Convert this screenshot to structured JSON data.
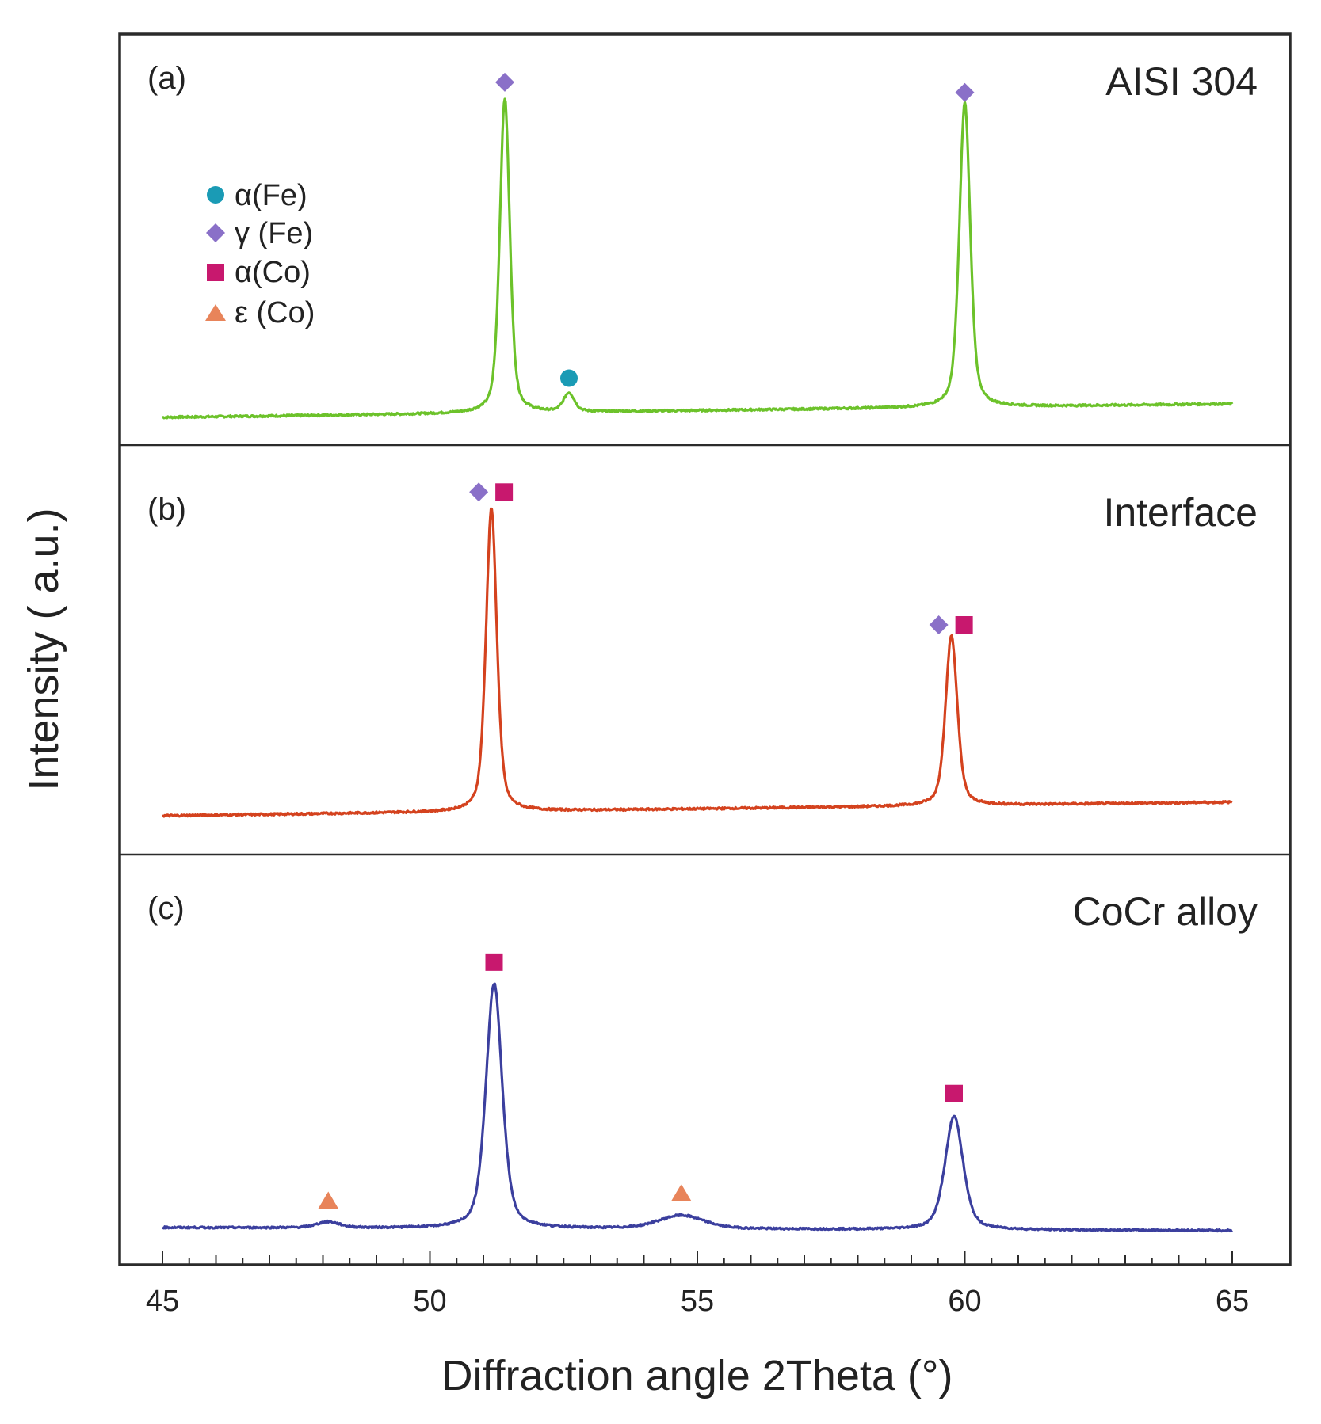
{
  "chart_data": {
    "type": "line",
    "title": "",
    "xlabel": "Diffraction angle 2Theta (°)",
    "ylabel": "Intensity ( a.u.)",
    "xlim": [
      45,
      65
    ],
    "xticks": [
      "45",
      "50",
      "55",
      "60",
      "65"
    ],
    "legend": {
      "placement": "top-left of panel (a)",
      "entries": [
        {
          "key": "alpha_fe",
          "symbol": "circle",
          "label": "α(Fe)",
          "color": "#1a9bb5"
        },
        {
          "key": "gamma_fe",
          "symbol": "diamond",
          "label": "γ (Fe)",
          "color": "#8a70c8"
        },
        {
          "key": "alpha_co",
          "symbol": "square",
          "label": "α(Co)",
          "color": "#c8186e"
        },
        {
          "key": "epsilon_co",
          "symbol": "triangle",
          "label": "ε (Co)",
          "color": "#e8845a"
        }
      ]
    },
    "panels": [
      {
        "letter": "(a)",
        "title": "AISI 304",
        "color": "#6cc22a",
        "ylim": [
          0,
          1.0
        ],
        "baseline": [
          0.0,
          0.04
        ],
        "peaks": [
          {
            "x": 51.4,
            "height": 0.93,
            "width": 0.11,
            "markers": [
              "gamma_fe"
            ]
          },
          {
            "x": 52.6,
            "height": 0.055,
            "width": 0.12,
            "markers": [
              "alpha_fe"
            ]
          },
          {
            "x": 60.0,
            "height": 0.9,
            "width": 0.12,
            "markers": [
              "gamma_fe"
            ]
          }
        ]
      },
      {
        "letter": "(b)",
        "title": "Interface",
        "color": "#d4421e",
        "ylim": [
          0,
          1.0
        ],
        "baseline": [
          0.0,
          0.04
        ],
        "peaks": [
          {
            "x": 51.15,
            "height": 0.89,
            "width": 0.12,
            "markers": [
              "gamma_fe",
              "alpha_co"
            ]
          },
          {
            "x": 59.75,
            "height": 0.5,
            "width": 0.13,
            "markers": [
              "gamma_fe",
              "alpha_co"
            ]
          }
        ]
      },
      {
        "letter": "(c)",
        "title": "CoCr alloy",
        "color": "#3b3f9e",
        "ylim": [
          0,
          1.0
        ],
        "baseline": [
          0.0,
          -0.01
        ],
        "peaks": [
          {
            "x": 48.1,
            "height": 0.02,
            "width": 0.25,
            "markers": [
              "epsilon_co"
            ]
          },
          {
            "x": 51.2,
            "height": 0.82,
            "width": 0.18,
            "markers": [
              "alpha_co"
            ]
          },
          {
            "x": 54.7,
            "height": 0.045,
            "width": 0.5,
            "markers": [
              "epsilon_co"
            ]
          },
          {
            "x": 59.8,
            "height": 0.38,
            "width": 0.2,
            "markers": [
              "alpha_co"
            ]
          }
        ]
      }
    ]
  }
}
